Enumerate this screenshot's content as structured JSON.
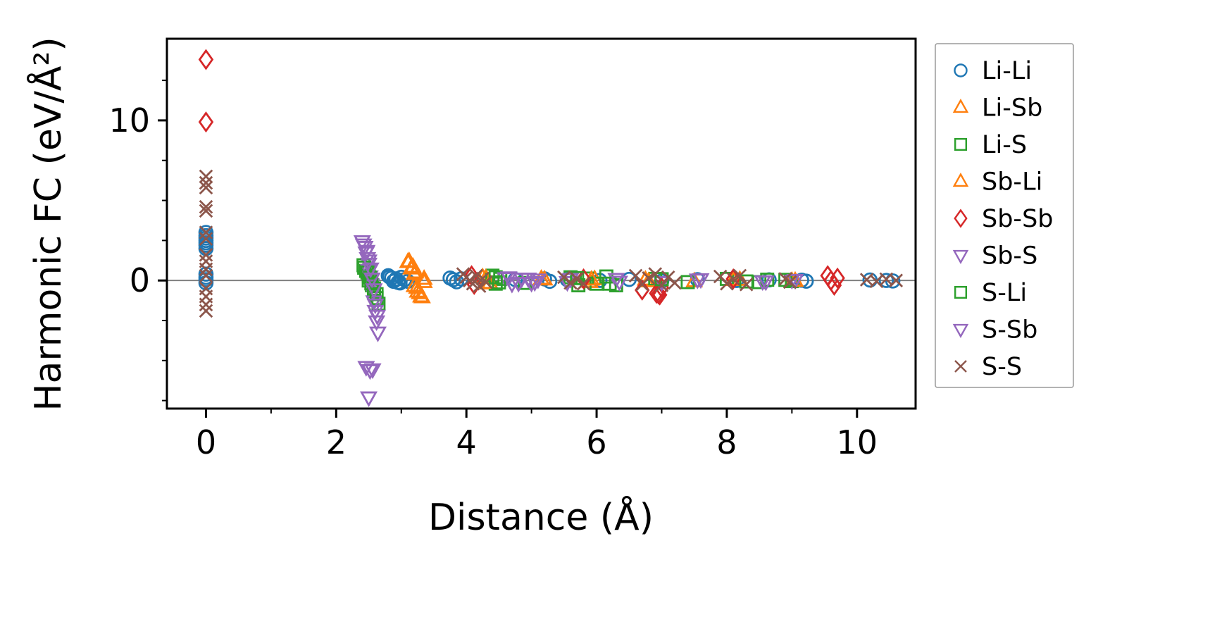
{
  "chart_data": {
    "type": "scatter",
    "title": "",
    "xlabel": "Distance (Å)",
    "ylabel": "Harmonic FC (eV/Å²)",
    "xlim": [
      -0.6,
      10.9
    ],
    "ylim": [
      -8.0,
      15.1
    ],
    "x_ticks": [
      0,
      2,
      4,
      6,
      8,
      10
    ],
    "x_minor_ticks": [
      1,
      3,
      5,
      7,
      9
    ],
    "y_ticks": [
      0,
      10
    ],
    "y_minor_ticks": [
      -7.5,
      -5,
      -2.5,
      2.5,
      5,
      7.5,
      12.5
    ],
    "grid": false,
    "zero_line_y": 0,
    "zero_line_color": "#808080",
    "axis_color": "#000000",
    "legend_position": "outside-right",
    "legend_border_color": "#9a9a9a",
    "series": [
      {
        "name": "Li-Li",
        "marker": "circle",
        "color": "#1f77b4",
        "points": [
          [
            0,
            3.0
          ],
          [
            0,
            2.8
          ],
          [
            0,
            2.65
          ],
          [
            0,
            2.5
          ],
          [
            0,
            2.35
          ],
          [
            0,
            2.2
          ],
          [
            0,
            2.0
          ],
          [
            0,
            0.4
          ],
          [
            0,
            0.2
          ],
          [
            0,
            0.05
          ],
          [
            0,
            -0.15
          ],
          [
            2.8,
            0.3
          ],
          [
            2.82,
            0.22
          ],
          [
            2.85,
            0.15
          ],
          [
            2.88,
            -0.05
          ],
          [
            2.9,
            0.0
          ],
          [
            2.92,
            0.1
          ],
          [
            2.95,
            -0.12
          ],
          [
            2.98,
            -0.15
          ],
          [
            3.0,
            0.2
          ],
          [
            3.05,
            0.05
          ],
          [
            3.1,
            -0.05
          ],
          [
            3.75,
            0.15
          ],
          [
            3.8,
            0.05
          ],
          [
            3.85,
            -0.08
          ],
          [
            3.92,
            0.1
          ],
          [
            4.75,
            0.06
          ],
          [
            5.2,
            0.1
          ],
          [
            5.28,
            -0.05
          ],
          [
            5.55,
            0.05
          ],
          [
            6.05,
            0.0
          ],
          [
            6.5,
            0.07
          ],
          [
            7.0,
            -0.04
          ],
          [
            7.55,
            0.05
          ],
          [
            8.15,
            0.0
          ],
          [
            8.65,
            0.04
          ],
          [
            9.15,
            0.02
          ],
          [
            9.22,
            -0.04
          ],
          [
            10.2,
            0.03
          ],
          [
            10.45,
            0.0
          ],
          [
            10.55,
            -0.03
          ]
        ]
      },
      {
        "name": "Li-Sb",
        "marker": "triangle-up",
        "color": "#ff7f0e",
        "points": [
          [
            3.1,
            1.15
          ],
          [
            3.15,
            0.75
          ],
          [
            3.2,
            0.4
          ],
          [
            3.2,
            -0.35
          ],
          [
            3.25,
            -0.7
          ],
          [
            3.3,
            -1.0
          ],
          [
            3.35,
            0.1
          ],
          [
            3.35,
            -0.1
          ],
          [
            4.25,
            0.2
          ],
          [
            4.32,
            -0.18
          ],
          [
            5.15,
            0.1
          ],
          [
            5.9,
            -0.1
          ],
          [
            5.97,
            0.08
          ],
          [
            6.75,
            0.05
          ],
          [
            7.5,
            -0.05
          ],
          [
            8.2,
            0.04
          ],
          [
            9.0,
            -0.03
          ]
        ]
      },
      {
        "name": "Li-S",
        "marker": "square",
        "color": "#2ca02c",
        "points": [
          [
            2.42,
            0.95
          ],
          [
            2.46,
            0.6
          ],
          [
            2.5,
            0.3
          ],
          [
            2.5,
            0.0
          ],
          [
            2.55,
            -0.3
          ],
          [
            2.58,
            -0.65
          ],
          [
            2.62,
            -1.1
          ],
          [
            2.65,
            -1.45
          ],
          [
            4.4,
            0.3
          ],
          [
            4.45,
            -0.2
          ],
          [
            4.52,
            0.1
          ],
          [
            4.9,
            -0.15
          ],
          [
            5.6,
            0.2
          ],
          [
            5.72,
            -0.3
          ],
          [
            5.85,
            0.12
          ],
          [
            6.0,
            -0.2
          ],
          [
            6.15,
            0.25
          ],
          [
            6.3,
            -0.3
          ],
          [
            6.9,
            0.1
          ],
          [
            7.4,
            -0.1
          ],
          [
            8.0,
            0.1
          ],
          [
            8.5,
            -0.1
          ],
          [
            8.62,
            0.05
          ],
          [
            9.0,
            -0.04
          ]
        ]
      },
      {
        "name": "Sb-Li",
        "marker": "triangle-up",
        "color": "#ff7f0e",
        "points": [
          [
            3.12,
            1.2
          ],
          [
            3.18,
            0.85
          ],
          [
            3.22,
            0.5
          ],
          [
            3.24,
            -0.45
          ],
          [
            3.28,
            -0.8
          ],
          [
            3.32,
            -1.05
          ],
          [
            4.3,
            0.15
          ],
          [
            4.36,
            -0.15
          ],
          [
            5.2,
            0.06
          ],
          [
            5.92,
            0.05
          ],
          [
            6.8,
            -0.05
          ],
          [
            8.1,
            0.03
          ],
          [
            9.05,
            -0.02
          ]
        ]
      },
      {
        "name": "Sb-Sb",
        "marker": "diamond",
        "color": "#d62728",
        "points": [
          [
            0,
            13.8
          ],
          [
            0,
            9.9
          ],
          [
            4.08,
            0.3
          ],
          [
            4.12,
            -0.25
          ],
          [
            5.8,
            0.1
          ],
          [
            6.7,
            -0.6
          ],
          [
            6.92,
            -0.8
          ],
          [
            6.95,
            -0.85
          ],
          [
            6.97,
            -0.9
          ],
          [
            7.0,
            -0.45
          ],
          [
            8.1,
            0.1
          ],
          [
            9.55,
            0.3
          ],
          [
            9.6,
            0.0
          ],
          [
            9.65,
            -0.3
          ],
          [
            9.7,
            0.15
          ]
        ]
      },
      {
        "name": "Sb-S",
        "marker": "triangle-down",
        "color": "#9467bd",
        "points": [
          [
            2.4,
            2.45
          ],
          [
            2.44,
            2.1
          ],
          [
            2.46,
            1.75
          ],
          [
            2.48,
            1.4
          ],
          [
            2.5,
            1.05
          ],
          [
            2.5,
            0.65
          ],
          [
            2.52,
            0.25
          ],
          [
            2.54,
            -0.25
          ],
          [
            2.56,
            -0.75
          ],
          [
            2.58,
            -1.3
          ],
          [
            2.6,
            -1.9
          ],
          [
            2.62,
            -2.55
          ],
          [
            2.64,
            -3.25
          ],
          [
            2.46,
            -5.4
          ],
          [
            2.56,
            -5.55
          ],
          [
            2.5,
            -7.3
          ],
          [
            4.6,
            0.15
          ],
          [
            4.7,
            -0.2
          ],
          [
            4.85,
            0.12
          ],
          [
            5.0,
            -0.15
          ],
          [
            5.1,
            0.06
          ],
          [
            5.55,
            -0.1
          ],
          [
            6.3,
            0.1
          ],
          [
            7.0,
            -0.1
          ],
          [
            7.6,
            0.08
          ],
          [
            8.6,
            -0.06
          ],
          [
            9.0,
            0.04
          ]
        ]
      },
      {
        "name": "S-Li",
        "marker": "square",
        "color": "#2ca02c",
        "points": [
          [
            2.43,
            0.8
          ],
          [
            2.48,
            0.5
          ],
          [
            2.52,
            0.18
          ],
          [
            2.54,
            -0.18
          ],
          [
            2.58,
            -0.5
          ],
          [
            2.62,
            -0.85
          ],
          [
            4.45,
            0.2
          ],
          [
            4.5,
            -0.12
          ],
          [
            5.7,
            0.15
          ],
          [
            6.2,
            -0.2
          ],
          [
            7.0,
            0.08
          ],
          [
            8.3,
            -0.06
          ],
          [
            8.9,
            0.04
          ]
        ]
      },
      {
        "name": "S-Sb",
        "marker": "triangle-down",
        "color": "#9467bd",
        "points": [
          [
            2.42,
            2.25
          ],
          [
            2.47,
            1.85
          ],
          [
            2.5,
            1.25
          ],
          [
            2.53,
            0.75
          ],
          [
            2.55,
            0.12
          ],
          [
            2.58,
            -0.55
          ],
          [
            2.6,
            -1.5
          ],
          [
            2.63,
            -2.2
          ],
          [
            2.52,
            -5.6
          ],
          [
            4.65,
            0.2
          ],
          [
            4.8,
            -0.15
          ],
          [
            4.95,
            0.12
          ],
          [
            5.05,
            -0.1
          ],
          [
            5.6,
            0.1
          ],
          [
            6.35,
            -0.08
          ],
          [
            7.55,
            0.06
          ],
          [
            8.55,
            -0.05
          ],
          [
            9.05,
            0.03
          ]
        ]
      },
      {
        "name": "S-S",
        "marker": "x",
        "color": "#8c564b",
        "points": [
          [
            0,
            6.5
          ],
          [
            0,
            6.1
          ],
          [
            0,
            5.8
          ],
          [
            0,
            4.6
          ],
          [
            0,
            4.35
          ],
          [
            0,
            3.0
          ],
          [
            0,
            2.6
          ],
          [
            0,
            1.6
          ],
          [
            0,
            1.2
          ],
          [
            0,
            0.7
          ],
          [
            0,
            0.3
          ],
          [
            0,
            -0.5
          ],
          [
            0,
            -1.0
          ],
          [
            0,
            -1.5
          ],
          [
            0,
            -1.9
          ],
          [
            3.95,
            0.4
          ],
          [
            4.0,
            0.2
          ],
          [
            4.05,
            0.0
          ],
          [
            4.1,
            -0.2
          ],
          [
            4.15,
            0.3
          ],
          [
            4.2,
            -0.35
          ],
          [
            4.25,
            0.12
          ],
          [
            4.3,
            -0.1
          ],
          [
            5.5,
            0.2
          ],
          [
            5.6,
            -0.15
          ],
          [
            5.7,
            0.1
          ],
          [
            5.8,
            -0.2
          ],
          [
            6.6,
            0.3
          ],
          [
            6.7,
            -0.25
          ],
          [
            6.8,
            0.15
          ],
          [
            6.9,
            0.4
          ],
          [
            7.0,
            -0.3
          ],
          [
            7.1,
            0.2
          ],
          [
            7.2,
            -0.15
          ],
          [
            7.9,
            0.25
          ],
          [
            8.0,
            -0.2
          ],
          [
            8.1,
            0.1
          ],
          [
            8.2,
            0.3
          ],
          [
            8.3,
            -0.25
          ],
          [
            8.9,
            0.1
          ],
          [
            8.97,
            -0.1
          ],
          [
            10.15,
            0.05
          ],
          [
            10.3,
            -0.05
          ],
          [
            10.45,
            0.08
          ],
          [
            10.6,
            0.0
          ]
        ]
      }
    ]
  }
}
